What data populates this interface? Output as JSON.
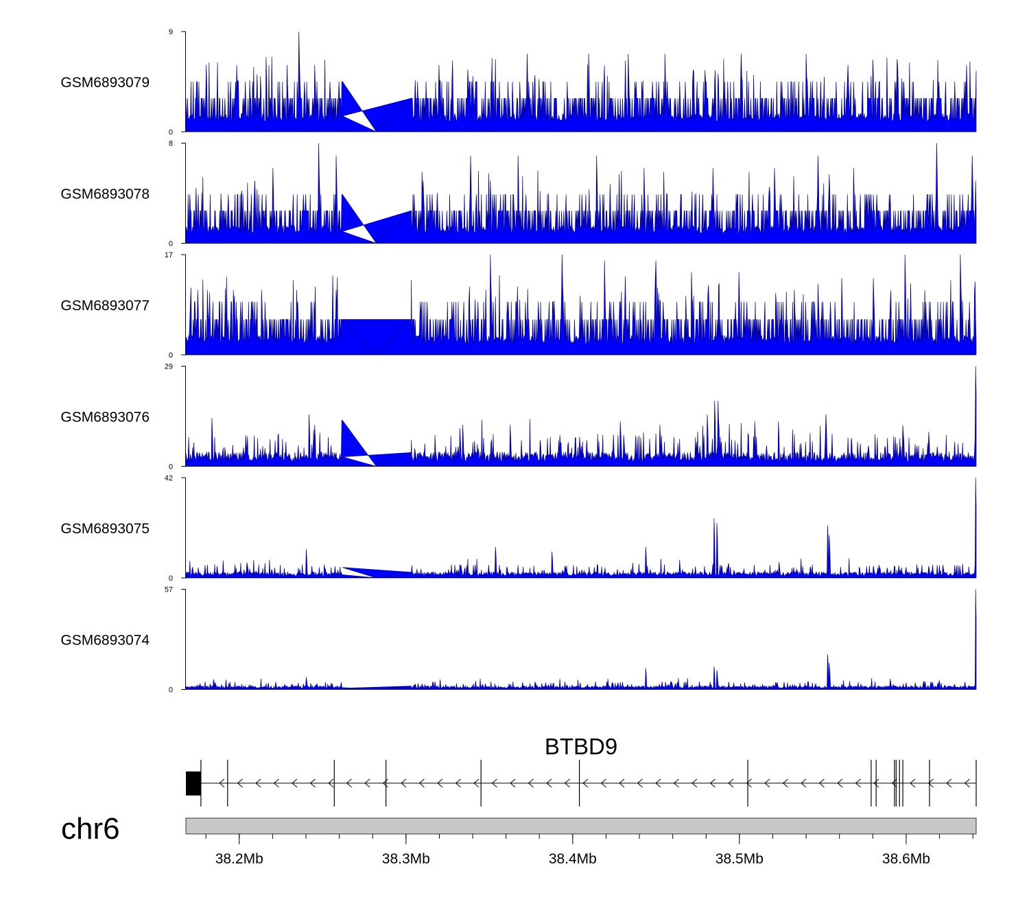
{
  "chart_data": {
    "type": "coverage-tracks",
    "colors": {
      "signal_fill": "#0000ff",
      "signal_line": "#000080",
      "gene": "#000000",
      "ideogram": "#c8c8c8"
    },
    "tracks": [
      {
        "name": "GSM6893079",
        "ymin": 0,
        "ymax": 9,
        "ymin_label": "0",
        "ymax_label": "9",
        "baseline": 1.5,
        "max_peak": 9,
        "peak_pos": 0.143,
        "peaks": [
          [
            0.026,
            6
          ],
          [
            0.064,
            6
          ],
          [
            0.094,
            5
          ],
          [
            0.128,
            6
          ],
          [
            0.143,
            9
          ],
          [
            0.163,
            6
          ],
          [
            0.32,
            6
          ],
          [
            0.363,
            5
          ],
          [
            0.432,
            7
          ],
          [
            0.51,
            7
          ],
          [
            0.56,
            7
          ],
          [
            0.606,
            7
          ],
          [
            0.703,
            7
          ],
          [
            0.785,
            7
          ],
          [
            0.838,
            6
          ],
          [
            0.901,
            6
          ],
          [
            0.988,
            6
          ]
        ]
      },
      {
        "name": "GSM6893078",
        "ymin": 0,
        "ymax": 8,
        "ymin_label": "0",
        "ymax_label": "8",
        "baseline": 1.3,
        "max_peak": 8,
        "peak_pos": 0.168,
        "peaks": [
          [
            0.044,
            4
          ],
          [
            0.087,
            5
          ],
          [
            0.11,
            6
          ],
          [
            0.168,
            8
          ],
          [
            0.19,
            7
          ],
          [
            0.2,
            5
          ],
          [
            0.3,
            5
          ],
          [
            0.36,
            7
          ],
          [
            0.385,
            5
          ],
          [
            0.42,
            7
          ],
          [
            0.52,
            7
          ],
          [
            0.58,
            6
          ],
          [
            0.667,
            6
          ],
          [
            0.745,
            6
          ],
          [
            0.8,
            7
          ],
          [
            0.845,
            6
          ],
          [
            0.95,
            8
          ],
          [
            0.995,
            7
          ]
        ]
      },
      {
        "name": "GSM6893077",
        "ymin": 0,
        "ymax": 17,
        "ymin_label": "0",
        "ymax_label": "17",
        "baseline": 3,
        "max_peak": 17,
        "peak_pos": 0.385,
        "peaks": [
          [
            0.015,
            11
          ],
          [
            0.027,
            11
          ],
          [
            0.06,
            11
          ],
          [
            0.096,
            11
          ],
          [
            0.14,
            11
          ],
          [
            0.19,
            11
          ],
          [
            0.385,
            17
          ],
          [
            0.476,
            17
          ],
          [
            0.53,
            16
          ],
          [
            0.595,
            16
          ],
          [
            0.64,
            14
          ],
          [
            0.7,
            14
          ],
          [
            0.77,
            11
          ],
          [
            0.8,
            12
          ],
          [
            0.83,
            13
          ],
          [
            0.87,
            13
          ],
          [
            0.91,
            17
          ],
          [
            0.98,
            17
          ]
        ]
      },
      {
        "name": "GSM6893076",
        "ymin": 0,
        "ymax": 29,
        "ymin_label": "0",
        "ymax_label": "29",
        "baseline": 2.5,
        "max_peak": 29,
        "peak_pos": 0.999,
        "peaks": [
          [
            0.033,
            14
          ],
          [
            0.076,
            9
          ],
          [
            0.156,
            15
          ],
          [
            0.163,
            12
          ],
          [
            0.22,
            9
          ],
          [
            0.35,
            12
          ],
          [
            0.41,
            12
          ],
          [
            0.55,
            13
          ],
          [
            0.6,
            12
          ],
          [
            0.66,
            15
          ],
          [
            0.673,
            19
          ],
          [
            0.669,
            19
          ],
          [
            0.72,
            13
          ],
          [
            0.75,
            13
          ],
          [
            0.81,
            15
          ],
          [
            0.94,
            10
          ],
          [
            0.999,
            29
          ]
        ]
      },
      {
        "name": "GSM6893075",
        "ymin": 0,
        "ymax": 42,
        "ymin_label": "0",
        "ymax_label": "42",
        "baseline": 1.5,
        "max_peak": 42,
        "peak_pos": 0.999,
        "peaks": [
          [
            0.039,
            5
          ],
          [
            0.078,
            5
          ],
          [
            0.152,
            12
          ],
          [
            0.392,
            13
          ],
          [
            0.463,
            11
          ],
          [
            0.582,
            13
          ],
          [
            0.668,
            25
          ],
          [
            0.672,
            23
          ],
          [
            0.812,
            22
          ],
          [
            0.814,
            18
          ],
          [
            0.87,
            5
          ],
          [
            0.94,
            5
          ],
          [
            0.999,
            42
          ]
        ]
      },
      {
        "name": "GSM6893074",
        "ymin": 0,
        "ymax": 57,
        "ymin_label": "0",
        "ymax_label": "57",
        "baseline": 1.2,
        "max_peak": 57,
        "peak_pos": 0.999,
        "peaks": [
          [
            0.037,
            4
          ],
          [
            0.152,
            7
          ],
          [
            0.582,
            12
          ],
          [
            0.668,
            13
          ],
          [
            0.672,
            11
          ],
          [
            0.812,
            20
          ],
          [
            0.814,
            15
          ],
          [
            0.999,
            57
          ]
        ]
      }
    ],
    "gene": {
      "label": "BTBD9",
      "strand": "-",
      "start_mb": 38.17,
      "end_mb": 38.642,
      "utr_block": [
        38.17,
        38.177
      ],
      "exons_mb": [
        38.177,
        38.193,
        38.257,
        38.288,
        38.345,
        38.404,
        38.505,
        38.579,
        38.582,
        38.593,
        38.594,
        38.596,
        38.598,
        38.614,
        38.642
      ]
    },
    "chromosome": "chr6",
    "x_range_mb": [
      38.168,
      38.642
    ],
    "x_ticks": [
      {
        "value": 38.2,
        "label": "38.2Mb"
      },
      {
        "value": 38.3,
        "label": "38.3Mb"
      },
      {
        "value": 38.4,
        "label": "38.4Mb"
      },
      {
        "value": 38.5,
        "label": "38.5Mb"
      },
      {
        "value": 38.6,
        "label": "38.6Mb"
      }
    ]
  }
}
